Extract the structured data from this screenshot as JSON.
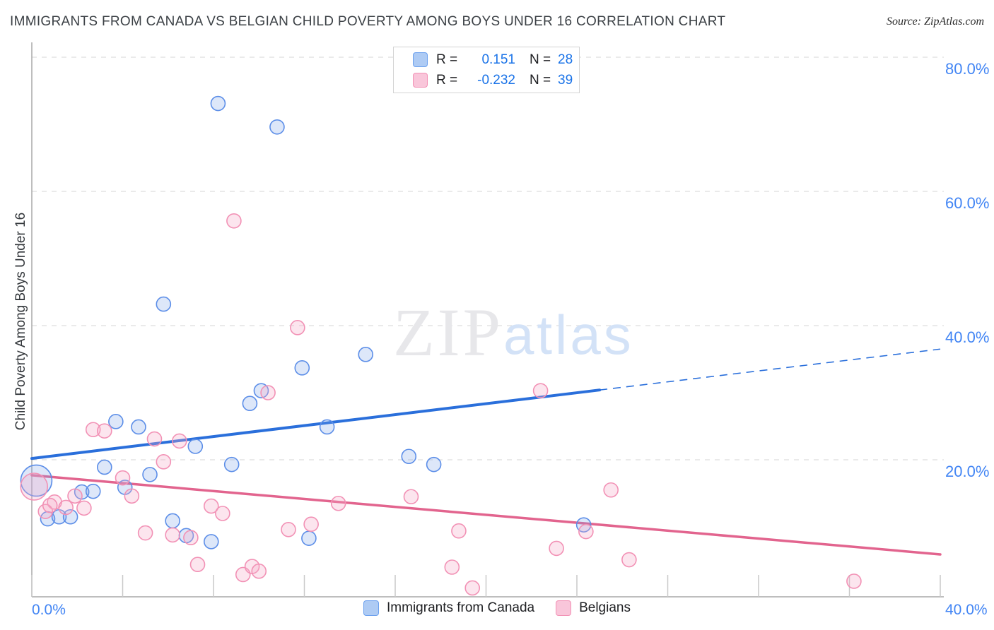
{
  "header": {
    "title": "IMMIGRANTS FROM CANADA VS BELGIAN CHILD POVERTY AMONG BOYS UNDER 16 CORRELATION CHART",
    "source": "Source: ZipAtlas.com"
  },
  "watermark": {
    "part1": "ZIP",
    "part2": "atlas"
  },
  "legend_box": {
    "rows": [
      {
        "series": "canada",
        "r_label": "R =",
        "r_value": "0.151",
        "n_label": "N =",
        "n_value": "28"
      },
      {
        "series": "belgians",
        "r_label": "R =",
        "r_value": "-0.232",
        "n_label": "N =",
        "n_value": "39"
      }
    ]
  },
  "bottom_legend": [
    {
      "series": "canada",
      "label": "Immigrants from Canada"
    },
    {
      "series": "belgians",
      "label": "Belgians"
    }
  ],
  "axes": {
    "y_title": "Child Poverty Among Boys Under 16",
    "x_label_min": "0.0%",
    "x_label_max": "40.0%",
    "y_tick_labels": [
      {
        "text": "80.0%",
        "value": 80
      },
      {
        "text": "60.0%",
        "value": 60
      },
      {
        "text": "40.0%",
        "value": 40
      },
      {
        "text": "20.0%",
        "value": 20
      }
    ],
    "x_tick_step": 4
  },
  "colors": {
    "canada_stroke": "#5c8ee8",
    "canada_fill": "rgba(120,160,230,0.25)",
    "belgians_stroke": "#f291b5",
    "belgians_fill": "rgba(246,170,200,0.30)",
    "canada_trend": "#2a6fdb",
    "belgians_trend": "#e2648e",
    "gridline": "#dddddd",
    "axis": "#a8a8a8",
    "tick_label": "#4285f4",
    "watermark_gray": "#e7e7ea",
    "watermark_blue": "#d3e2f7"
  },
  "chart_data": {
    "type": "scatter",
    "title": "Immigrants from Canada vs Belgian Child Poverty Among Boys Under 16",
    "xlabel": "Immigrants from Canada (%)",
    "ylabel": "Child Poverty Among Boys Under 16 (%)",
    "x_range": [
      0,
      40
    ],
    "y_range": [
      0,
      82
    ],
    "grid": true,
    "legend_position": "top-center",
    "series": [
      {
        "name": "Immigrants from Canada",
        "R": 0.151,
        "N": 28,
        "points": [
          {
            "x": 8.2,
            "y": 73.1,
            "size": 10
          },
          {
            "x": 10.8,
            "y": 69.6,
            "size": 10
          },
          {
            "x": 5.8,
            "y": 43.2,
            "size": 10
          },
          {
            "x": 14.7,
            "y": 35.7,
            "size": 10
          },
          {
            "x": 11.9,
            "y": 33.7,
            "size": 10
          },
          {
            "x": 10.1,
            "y": 30.3,
            "size": 10
          },
          {
            "x": 9.6,
            "y": 28.4,
            "size": 10
          },
          {
            "x": 13.0,
            "y": 24.9,
            "size": 10
          },
          {
            "x": 3.7,
            "y": 25.7,
            "size": 10
          },
          {
            "x": 4.7,
            "y": 24.9,
            "size": 10
          },
          {
            "x": 7.2,
            "y": 22.0,
            "size": 10
          },
          {
            "x": 3.2,
            "y": 18.9,
            "size": 10
          },
          {
            "x": 8.8,
            "y": 19.3,
            "size": 10
          },
          {
            "x": 5.2,
            "y": 17.8,
            "size": 10
          },
          {
            "x": 0.2,
            "y": 16.9,
            "size": 22
          },
          {
            "x": 4.1,
            "y": 15.9,
            "size": 10
          },
          {
            "x": 2.2,
            "y": 15.2,
            "size": 10
          },
          {
            "x": 2.7,
            "y": 15.3,
            "size": 10
          },
          {
            "x": 0.7,
            "y": 11.2,
            "size": 10
          },
          {
            "x": 1.2,
            "y": 11.5,
            "size": 10
          },
          {
            "x": 1.7,
            "y": 11.5,
            "size": 10
          },
          {
            "x": 6.2,
            "y": 10.9,
            "size": 10
          },
          {
            "x": 6.8,
            "y": 8.7,
            "size": 10
          },
          {
            "x": 7.9,
            "y": 7.8,
            "size": 10
          },
          {
            "x": 12.2,
            "y": 8.3,
            "size": 10
          },
          {
            "x": 16.6,
            "y": 20.5,
            "size": 10
          },
          {
            "x": 17.7,
            "y": 19.3,
            "size": 10
          },
          {
            "x": 24.3,
            "y": 10.3,
            "size": 10
          }
        ]
      },
      {
        "name": "Belgians",
        "R": -0.232,
        "N": 39,
        "points": [
          {
            "x": 8.9,
            "y": 55.6,
            "size": 10
          },
          {
            "x": 11.7,
            "y": 39.7,
            "size": 10
          },
          {
            "x": 22.4,
            "y": 30.3,
            "size": 10
          },
          {
            "x": 10.4,
            "y": 30.0,
            "size": 10
          },
          {
            "x": 2.7,
            "y": 24.5,
            "size": 10
          },
          {
            "x": 3.2,
            "y": 24.3,
            "size": 10
          },
          {
            "x": 5.4,
            "y": 23.1,
            "size": 10
          },
          {
            "x": 6.5,
            "y": 22.8,
            "size": 10
          },
          {
            "x": 5.8,
            "y": 19.7,
            "size": 10
          },
          {
            "x": 4.0,
            "y": 17.3,
            "size": 10
          },
          {
            "x": 0.1,
            "y": 16.0,
            "size": 19
          },
          {
            "x": 4.4,
            "y": 14.6,
            "size": 10
          },
          {
            "x": 1.9,
            "y": 14.6,
            "size": 10
          },
          {
            "x": 1.0,
            "y": 13.7,
            "size": 10
          },
          {
            "x": 1.5,
            "y": 12.9,
            "size": 10
          },
          {
            "x": 2.3,
            "y": 12.8,
            "size": 10
          },
          {
            "x": 0.6,
            "y": 12.3,
            "size": 10
          },
          {
            "x": 0.8,
            "y": 13.2,
            "size": 10
          },
          {
            "x": 7.9,
            "y": 13.1,
            "size": 10
          },
          {
            "x": 8.4,
            "y": 12.0,
            "size": 10
          },
          {
            "x": 5.0,
            "y": 9.1,
            "size": 10
          },
          {
            "x": 6.2,
            "y": 8.8,
            "size": 10
          },
          {
            "x": 7.0,
            "y": 8.4,
            "size": 10
          },
          {
            "x": 7.3,
            "y": 4.4,
            "size": 10
          },
          {
            "x": 9.3,
            "y": 2.9,
            "size": 10
          },
          {
            "x": 9.7,
            "y": 4.1,
            "size": 10
          },
          {
            "x": 10.0,
            "y": 3.4,
            "size": 10
          },
          {
            "x": 13.5,
            "y": 13.5,
            "size": 10
          },
          {
            "x": 16.7,
            "y": 14.5,
            "size": 10
          },
          {
            "x": 11.3,
            "y": 9.6,
            "size": 10
          },
          {
            "x": 12.3,
            "y": 10.4,
            "size": 10
          },
          {
            "x": 18.8,
            "y": 9.4,
            "size": 10
          },
          {
            "x": 18.5,
            "y": 4.0,
            "size": 10
          },
          {
            "x": 19.4,
            "y": 0.9,
            "size": 10
          },
          {
            "x": 25.5,
            "y": 15.5,
            "size": 10
          },
          {
            "x": 24.4,
            "y": 9.3,
            "size": 10
          },
          {
            "x": 23.1,
            "y": 6.8,
            "size": 10
          },
          {
            "x": 26.3,
            "y": 5.1,
            "size": 10
          },
          {
            "x": 36.2,
            "y": 1.9,
            "size": 10
          }
        ]
      }
    ],
    "trend_lines": [
      {
        "series": "Immigrants from Canada",
        "solid": {
          "x1": 0,
          "y1": 20.2,
          "x2": 25,
          "y2": 30.4
        },
        "dashed": {
          "x1": 25,
          "y1": 30.4,
          "x2": 40,
          "y2": 36.5
        }
      },
      {
        "series": "Belgians",
        "solid": {
          "x1": 0,
          "y1": 17.7,
          "x2": 40,
          "y2": 5.9
        }
      }
    ]
  }
}
